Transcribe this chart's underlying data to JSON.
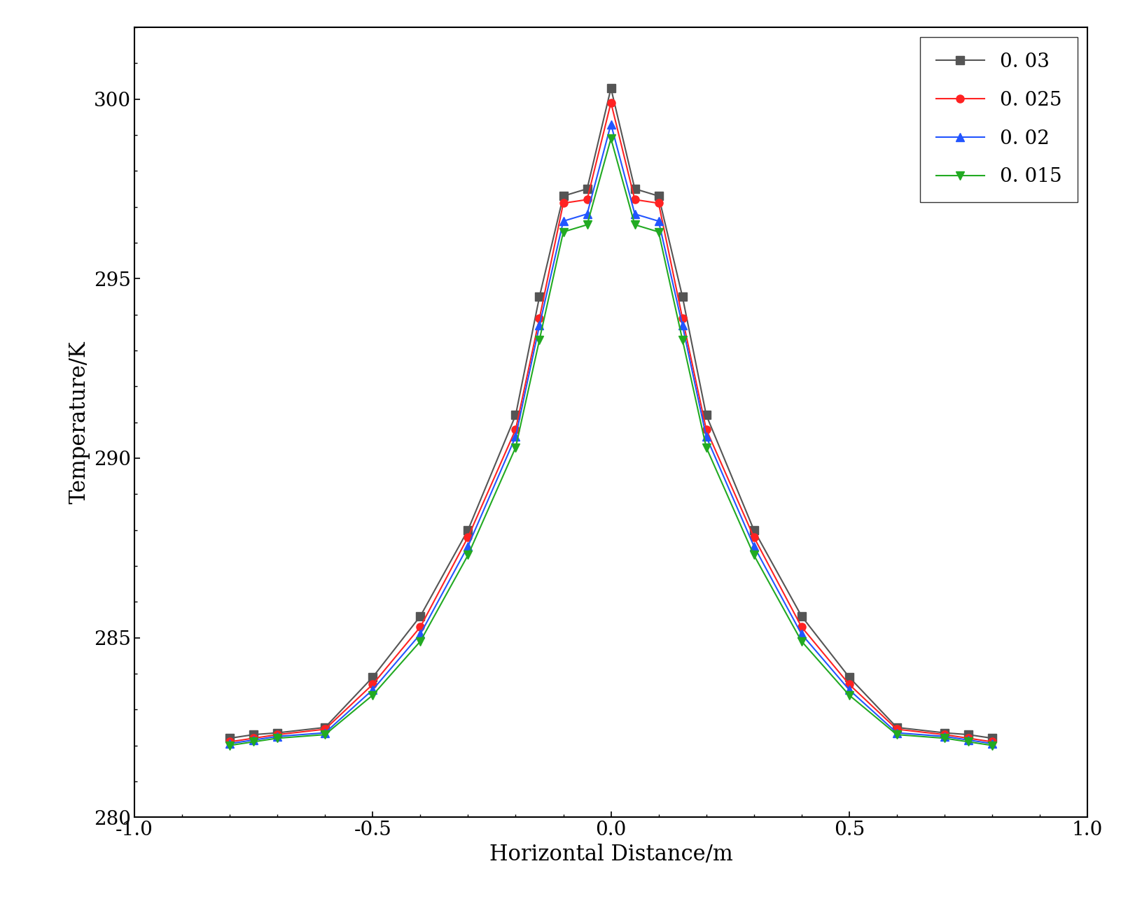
{
  "title": "",
  "xlabel": "Horizontal Distance/m",
  "ylabel": "Temperature/K",
  "xlim": [
    -1.0,
    1.0
  ],
  "ylim": [
    280,
    302
  ],
  "xticks": [
    -1.0,
    -0.5,
    0.0,
    0.5,
    1.0
  ],
  "yticks": [
    280,
    285,
    290,
    295,
    300
  ],
  "series": [
    {
      "label": "0. 03",
      "color": "#555555",
      "marker": "s",
      "markersize": 8,
      "linewidth": 1.5,
      "x": [
        -0.8,
        -0.75,
        -0.7,
        -0.6,
        -0.5,
        -0.4,
        -0.3,
        -0.2,
        -0.15,
        -0.1,
        -0.05,
        0.0,
        0.05,
        0.1,
        0.15,
        0.2,
        0.3,
        0.4,
        0.5,
        0.6,
        0.7,
        0.75,
        0.8
      ],
      "y": [
        282.2,
        282.3,
        282.35,
        282.5,
        283.9,
        285.6,
        288.0,
        291.2,
        294.5,
        297.3,
        297.5,
        300.3,
        297.5,
        297.3,
        294.5,
        291.2,
        288.0,
        285.6,
        283.9,
        282.5,
        282.35,
        282.3,
        282.2
      ]
    },
    {
      "label": "0. 025",
      "color": "#ff2222",
      "marker": "o",
      "markersize": 8,
      "linewidth": 1.5,
      "x": [
        -0.8,
        -0.75,
        -0.7,
        -0.6,
        -0.5,
        -0.4,
        -0.3,
        -0.2,
        -0.15,
        -0.1,
        -0.05,
        0.0,
        0.05,
        0.1,
        0.15,
        0.2,
        0.3,
        0.4,
        0.5,
        0.6,
        0.7,
        0.75,
        0.8
      ],
      "y": [
        282.1,
        282.2,
        282.3,
        282.45,
        283.7,
        285.3,
        287.8,
        290.8,
        293.9,
        297.1,
        297.2,
        299.9,
        297.2,
        297.1,
        293.9,
        290.8,
        287.8,
        285.3,
        283.7,
        282.45,
        282.3,
        282.2,
        282.1
      ]
    },
    {
      "label": "0. 02",
      "color": "#2255ff",
      "marker": "^",
      "markersize": 8,
      "linewidth": 1.5,
      "x": [
        -0.8,
        -0.75,
        -0.7,
        -0.6,
        -0.5,
        -0.4,
        -0.3,
        -0.2,
        -0.15,
        -0.1,
        -0.05,
        0.0,
        0.05,
        0.1,
        0.15,
        0.2,
        0.3,
        0.4,
        0.5,
        0.6,
        0.7,
        0.75,
        0.8
      ],
      "y": [
        282.05,
        282.15,
        282.25,
        282.35,
        283.55,
        285.1,
        287.55,
        290.6,
        293.7,
        296.6,
        296.8,
        299.3,
        296.8,
        296.6,
        293.7,
        290.6,
        287.55,
        285.1,
        283.55,
        282.35,
        282.25,
        282.15,
        282.05
      ]
    },
    {
      "label": "0. 015",
      "color": "#22aa22",
      "marker": "v",
      "markersize": 8,
      "linewidth": 1.5,
      "x": [
        -0.8,
        -0.75,
        -0.7,
        -0.6,
        -0.5,
        -0.4,
        -0.3,
        -0.2,
        -0.15,
        -0.1,
        -0.05,
        0.0,
        0.05,
        0.1,
        0.15,
        0.2,
        0.3,
        0.4,
        0.5,
        0.6,
        0.7,
        0.75,
        0.8
      ],
      "y": [
        282.0,
        282.1,
        282.2,
        282.3,
        283.4,
        284.9,
        287.3,
        290.3,
        293.3,
        296.3,
        296.5,
        298.9,
        296.5,
        296.3,
        293.3,
        290.3,
        287.3,
        284.9,
        283.4,
        282.3,
        282.2,
        282.1,
        282.0
      ]
    }
  ],
  "legend_loc": "upper right",
  "fontsize_ticks": 20,
  "fontsize_labels": 22,
  "fontsize_legend": 20,
  "figure_width": 16.01,
  "figure_height": 12.98,
  "dpi": 100
}
